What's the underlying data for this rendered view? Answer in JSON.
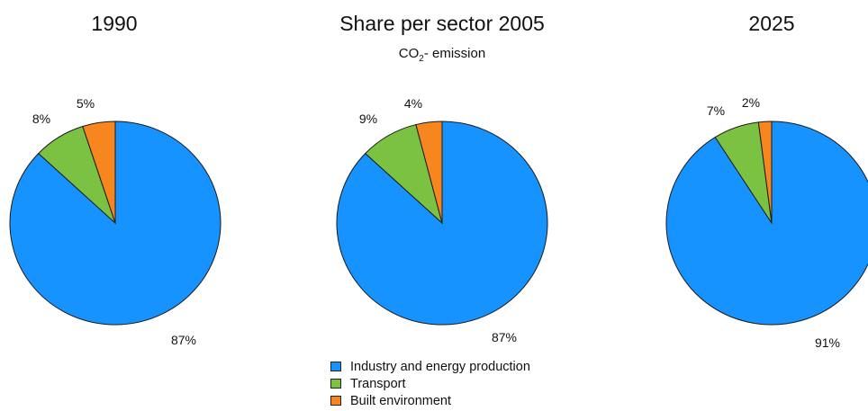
{
  "chart_data": {
    "type": "pie",
    "title": "Share per sector 2005",
    "subtitle_main": "CO",
    "subtitle_sub": "2",
    "subtitle_tail": "- emission",
    "legend": [
      {
        "name": "Industry and energy production",
        "color": "#1793ff"
      },
      {
        "name": "Transport",
        "color": "#7cc242"
      },
      {
        "name": "Built environment",
        "color": "#f7861f"
      }
    ],
    "pies": [
      {
        "label": "1990",
        "values": [
          87,
          8,
          5
        ],
        "value_labels": [
          "87%",
          "8%",
          "5%"
        ]
      },
      {
        "label": "2005",
        "values": [
          87,
          9,
          4
        ],
        "value_labels": [
          "87%",
          "9%",
          "4%"
        ]
      },
      {
        "label": "2025",
        "values": [
          91,
          7,
          2
        ],
        "value_labels": [
          "91%",
          "7%",
          "2%"
        ]
      }
    ]
  }
}
